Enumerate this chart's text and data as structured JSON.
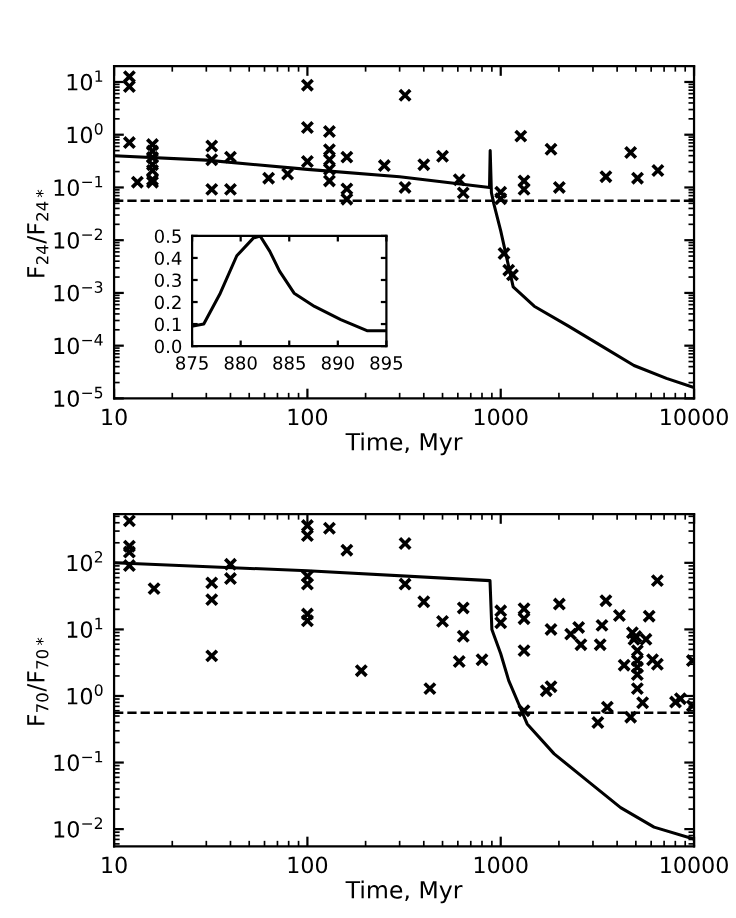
{
  "chart_data": [
    {
      "type": "scatter",
      "xlabel": "Time, Myr",
      "ylabel": "F$_{24}$/F$_{24*}$",
      "log": "xy",
      "xlim": [
        10,
        10000
      ],
      "ylim": [
        1e-05,
        20
      ],
      "xticks": [
        10,
        100,
        1000,
        10000
      ],
      "yticks": [
        {
          "value": 1e-05,
          "label": "10$^{−5}$"
        },
        {
          "value": 0.0001,
          "label": "10$^{−4}$"
        },
        {
          "value": 0.001,
          "label": "10$^{−3}$"
        },
        {
          "value": 0.01,
          "label": "10$^{−2}$"
        },
        {
          "value": 0.1,
          "label": "10$^{−1}$"
        },
        {
          "value": 1,
          "label": "10$^{0}$"
        },
        {
          "value": 10,
          "label": "10$^{1}$"
        }
      ],
      "marker": "cross",
      "grid": false,
      "legend": false,
      "ref_lines": [
        {
          "axis": "y",
          "value": 0.056,
          "line_style": "dashed",
          "color": "#000000"
        }
      ],
      "series": [
        {
          "type": "line",
          "color": "#000000",
          "line_style": "solid",
          "marker": "none",
          "x": [
            10,
            30,
            100,
            300,
            875,
            882,
            895,
            920,
            1000,
            1160,
            1490,
            2220,
            3300,
            4890,
            7200,
            10000
          ],
          "values": [
            0.4,
            0.33,
            0.22,
            0.16,
            0.1,
            0.5,
            0.08,
            0.05,
            0.015,
            0.0013,
            0.00056,
            0.00024,
            0.0001,
            4.2e-05,
            2.4e-05,
            1.6e-05
          ]
        },
        {
          "color": "#000000",
          "x": [
            12,
            12,
            12,
            13.2,
            15.8,
            15.8,
            15.8,
            15.8,
            15.8,
            15.8,
            15.8,
            32,
            32,
            32,
            40,
            40,
            63,
            79,
            100,
            100,
            100,
            130,
            130,
            130,
            130,
            130,
            160,
            160,
            160,
            250,
            320,
            320,
            400,
            500,
            610,
            640,
            1000,
            1000,
            1040,
            1100,
            1150,
            1270,
            1320,
            1320,
            1820,
            2010,
            3500,
            4700,
            5100,
            6500
          ],
          "values": [
            12.6,
            8.2,
            0.71,
            0.126,
            0.65,
            0.49,
            0.37,
            0.27,
            0.21,
            0.14,
            0.126,
            0.61,
            0.335,
            0.092,
            0.376,
            0.092,
            0.15,
            0.18,
            8.7,
            1.37,
            0.31,
            1.15,
            0.52,
            0.335,
            0.22,
            0.133,
            0.376,
            0.094,
            0.06,
            0.26,
            5.6,
            0.1,
            0.27,
            0.39,
            0.14,
            0.079,
            0.081,
            0.061,
            0.0056,
            0.0027,
            0.0022,
            0.94,
            0.133,
            0.092,
            0.53,
            0.1,
            0.16,
            0.46,
            0.15,
            0.21
          ]
        }
      ]
    },
    {
      "type": "line",
      "xlim": [
        875,
        895
      ],
      "ylim": [
        0,
        0.5
      ],
      "xticks": [
        875,
        880,
        885,
        890,
        895
      ],
      "yticks": [
        {
          "value": 0,
          "label": "0.0"
        },
        {
          "value": 0.1,
          "label": "0.1"
        },
        {
          "value": 0.2,
          "label": "0.2"
        },
        {
          "value": 0.3,
          "label": "0.3"
        },
        {
          "value": 0.4,
          "label": "0.4"
        },
        {
          "value": 0.5,
          "label": "0.5"
        }
      ],
      "grid": false,
      "legend": false,
      "series": [
        {
          "color": "#000000",
          "line_style": "solid",
          "marker": "none",
          "x": [
            875,
            876.2,
            877.9,
            879.6,
            881.3,
            882,
            883,
            884,
            885.5,
            887.6,
            890.3,
            893,
            895
          ],
          "values": [
            0.09,
            0.1,
            0.24,
            0.41,
            0.49,
            0.5,
            0.43,
            0.34,
            0.24,
            0.18,
            0.12,
            0.07,
            0.07
          ]
        }
      ]
    },
    {
      "type": "scatter",
      "xlabel": "Time, Myr",
      "ylabel": "F$_{70}$/F$_{70*}$",
      "log": "xy",
      "xlim": [
        10,
        10000
      ],
      "ylim": [
        0.0055,
        540
      ],
      "xticks": [
        10,
        100,
        1000,
        10000
      ],
      "yticks": [
        {
          "value": 0.01,
          "label": "10$^{−2}$"
        },
        {
          "value": 0.1,
          "label": "10$^{−1}$"
        },
        {
          "value": 1,
          "label": "10$^{0}$"
        },
        {
          "value": 10,
          "label": "10$^{1}$"
        },
        {
          "value": 100,
          "label": "10$^{2}$"
        }
      ],
      "marker": "cross",
      "grid": false,
      "legend": false,
      "ref_lines": [
        {
          "axis": "y",
          "value": 0.56,
          "line_style": "dashed",
          "color": "#000000"
        }
      ],
      "series": [
        {
          "type": "line",
          "color": "#000000",
          "line_style": "solid",
          "marker": "none",
          "x": [
            10,
            100,
            880,
            900,
            1000,
            1100,
            1370,
            1890,
            2790,
            4170,
            6210,
            10000
          ],
          "values": [
            100,
            76,
            54,
            10,
            4.3,
            1.7,
            0.38,
            0.135,
            0.054,
            0.021,
            0.0107,
            0.0071
          ]
        },
        {
          "color": "#000000",
          "x": [
            12,
            12,
            12,
            12,
            16.1,
            32,
            32,
            32,
            40,
            40,
            100,
            100,
            100,
            100,
            100,
            100,
            130,
            160,
            190,
            320,
            320,
            400,
            430,
            500,
            610,
            640,
            640,
            800,
            1000,
            1000,
            1320,
            1320,
            1320,
            1320,
            1720,
            1820,
            1820,
            2010,
            2300,
            2530,
            2600,
            3180,
            3270,
            3340,
            3500,
            3560,
            4110,
            4350,
            4700,
            4800,
            4890,
            5000,
            5090,
            5090,
            5090,
            5090,
            5090,
            5420,
            5640,
            5860,
            6100,
            6460,
            6460,
            8020,
            8500,
            9800,
            9800
          ],
          "values": [
            427,
            178,
            145,
            91,
            41,
            50,
            28,
            4.0,
            95,
            58,
            363,
            257,
            63,
            48,
            17,
            13.5,
            331,
            155,
            2.4,
            195,
            48,
            26,
            1.29,
            13.2,
            3.3,
            21,
            7.9,
            3.5,
            19,
            12.6,
            20.4,
            14.5,
            4.8,
            0.6,
            1.2,
            1.38,
            10,
            24,
            8.5,
            10.7,
            5.9,
            0.4,
            5.9,
            11.5,
            27,
            0.68,
            16.2,
            2.9,
            0.48,
            8.9,
            7.1,
            7.8,
            4.8,
            3.4,
            2.7,
            2.1,
            1.29,
            0.79,
            7.1,
            15.8,
            3.5,
            3.0,
            54,
            0.81,
            0.91,
            3.4,
            0.71
          ]
        }
      ]
    }
  ]
}
